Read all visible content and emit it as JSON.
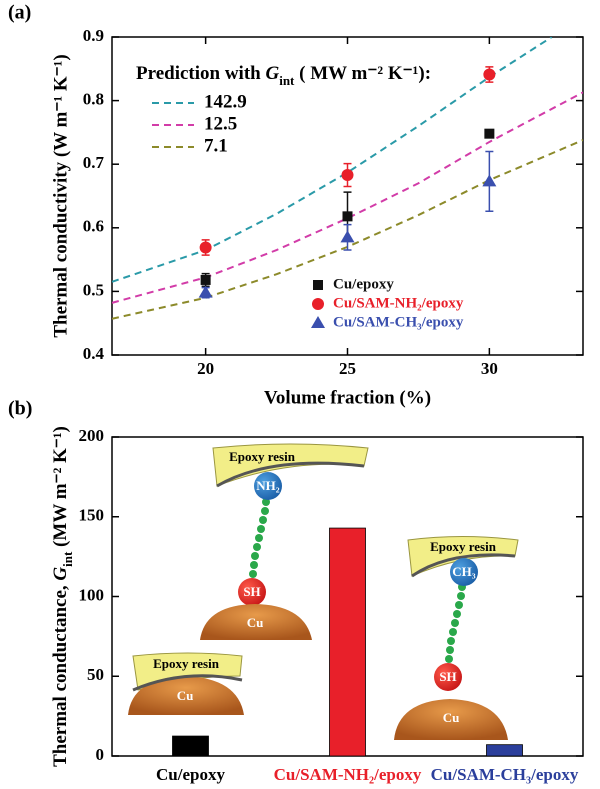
{
  "chart_data": [
    {
      "type": "scatter",
      "panel_label": "(a)",
      "xlabel": "Volume fraction (%)",
      "ylabel": "Thermal conductivity  (W m⁻¹ K⁻¹)",
      "xlim": [
        16.7,
        33.3
      ],
      "ylim": [
        0.4,
        0.9
      ],
      "xticks": [
        20,
        25,
        30
      ],
      "yticks": [
        0.4,
        0.5,
        0.6,
        0.7,
        0.8,
        0.9
      ],
      "prediction_title": [
        "Prediction with ",
        "G",
        "int",
        " ( MW m⁻² K⁻¹):"
      ],
      "predictions": [
        {
          "name": "142.9",
          "color": "#2a9aa8",
          "x": [
            16.7,
            20,
            22.5,
            25,
            27.5,
            30,
            32.2
          ],
          "values": [
            0.515,
            0.565,
            0.622,
            0.687,
            0.76,
            0.837,
            0.9
          ]
        },
        {
          "name": "12.5",
          "color": "#d23ca8",
          "x": [
            16.7,
            20,
            22.5,
            25,
            27.5,
            30,
            33.3
          ],
          "values": [
            0.482,
            0.522,
            0.565,
            0.615,
            0.67,
            0.735,
            0.813
          ]
        },
        {
          "name": "7.1",
          "color": "#8c8a2a",
          "x": [
            16.7,
            20,
            22.5,
            25,
            27.5,
            30,
            33.3
          ],
          "values": [
            0.457,
            0.49,
            0.527,
            0.57,
            0.62,
            0.675,
            0.738
          ]
        }
      ],
      "series": [
        {
          "name": "Cu/epoxy",
          "color": "#111111",
          "marker": "square",
          "x": [
            20,
            25,
            30
          ],
          "values": [
            0.518,
            0.618,
            0.748
          ],
          "errors": [
            0.01,
            0.038,
            0.005
          ]
        },
        {
          "name": "Cu/SAM-NH₂/epoxy",
          "color": "#e8202a",
          "marker": "circle",
          "x": [
            20,
            25,
            30
          ],
          "values": [
            0.569,
            0.683,
            0.841
          ],
          "errors": [
            0.012,
            0.018,
            0.012
          ]
        },
        {
          "name": "Cu/SAM-CH₃/epoxy",
          "color": "#3a4fae",
          "marker": "triangle",
          "x": [
            20,
            25,
            30
          ],
          "values": [
            0.498,
            0.585,
            0.673
          ],
          "errors": [
            0.008,
            0.02,
            0.047
          ]
        }
      ]
    },
    {
      "type": "bar",
      "panel_label": "(b)",
      "ylabel": [
        "Thermal conductance, ",
        "G",
        "int",
        "  (MW m⁻² K⁻¹)"
      ],
      "categories": [
        "Cu/epoxy",
        "Cu/SAM-NH₂/epoxy",
        "Cu/SAM-CH₃/epoxy"
      ],
      "values": [
        12.5,
        142.9,
        7.1
      ],
      "colors": [
        "#000000",
        "#e8202a",
        "#2b3f9c"
      ],
      "ylim": [
        0,
        200
      ],
      "yticks": [
        0,
        50,
        100,
        150,
        200
      ],
      "annotations": [
        "Epoxy resin",
        "NH₂",
        "SH",
        "Cu",
        "Epoxy resin",
        "Cu",
        "Epoxy resin",
        "CH₃",
        "SH",
        "Cu"
      ]
    }
  ]
}
